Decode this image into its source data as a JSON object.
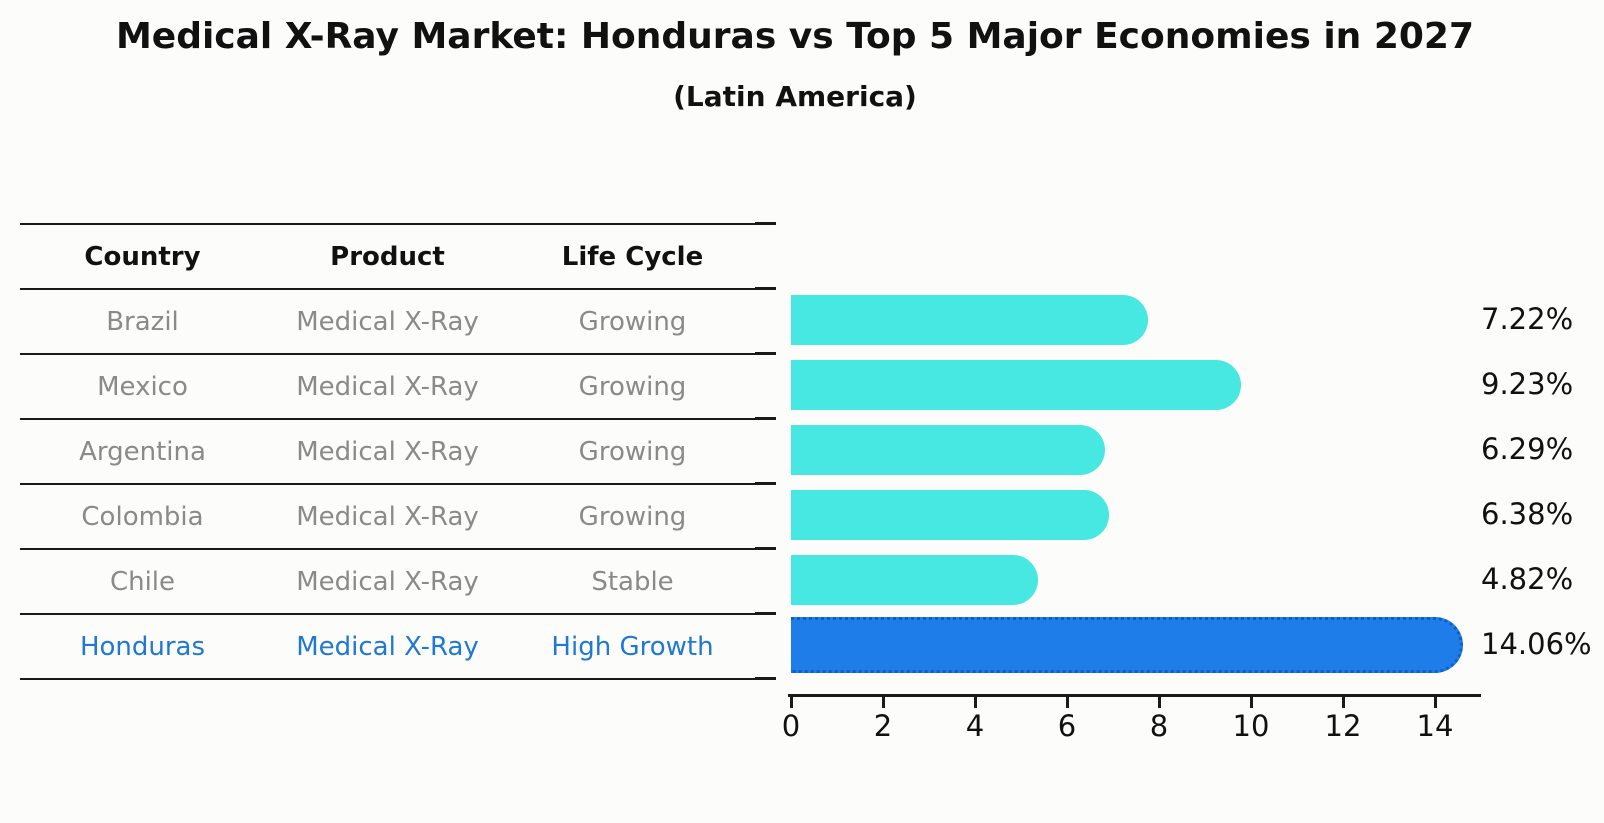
{
  "title": "Medical X-Ray Market: Honduras vs Top 5 Major Economies in 2027",
  "subtitle": "(Latin America)",
  "table": {
    "headers": [
      "Country",
      "Product",
      "Life Cycle"
    ],
    "rows": [
      {
        "country": "Brazil",
        "product": "Medical X-Ray",
        "life_cycle": "Growing",
        "highlight": false
      },
      {
        "country": "Mexico",
        "product": "Medical X-Ray",
        "life_cycle": "Growing",
        "highlight": false
      },
      {
        "country": "Argentina",
        "product": "Medical X-Ray",
        "life_cycle": "Growing",
        "highlight": false
      },
      {
        "country": "Colombia",
        "product": "Medical X-Ray",
        "life_cycle": "Growing",
        "highlight": false
      },
      {
        "country": "Chile",
        "product": "Medical X-Ray",
        "life_cycle": "Stable",
        "highlight": false
      },
      {
        "country": "Honduras",
        "product": "Medical X-Ray",
        "life_cycle": "High Growth",
        "highlight": true
      }
    ]
  },
  "chart_data": {
    "type": "bar",
    "orientation": "horizontal",
    "title": "Medical X-Ray Market: Honduras vs Top 5 Major Economies in 2027",
    "subtitle": "(Latin America)",
    "categories": [
      "Brazil",
      "Mexico",
      "Argentina",
      "Colombia",
      "Chile",
      "Honduras"
    ],
    "values": [
      7.22,
      9.23,
      6.29,
      6.38,
      4.82,
      14.06
    ],
    "value_labels": [
      "7.22%",
      "9.23%",
      "6.29%",
      "6.38%",
      "4.82%",
      "14.06%"
    ],
    "x_ticks": [
      0,
      2,
      4,
      6,
      8,
      10,
      12,
      14
    ],
    "xlim": [
      0,
      15
    ],
    "grid": false,
    "legend": "none",
    "bar_color": "#46e8e1",
    "highlight_color": "#1e7de8",
    "highlight_index": 5,
    "highlight_edge_style": "dotted",
    "text_color_normal": "#8a8a8a",
    "text_color_highlight": "#1f78d1"
  }
}
